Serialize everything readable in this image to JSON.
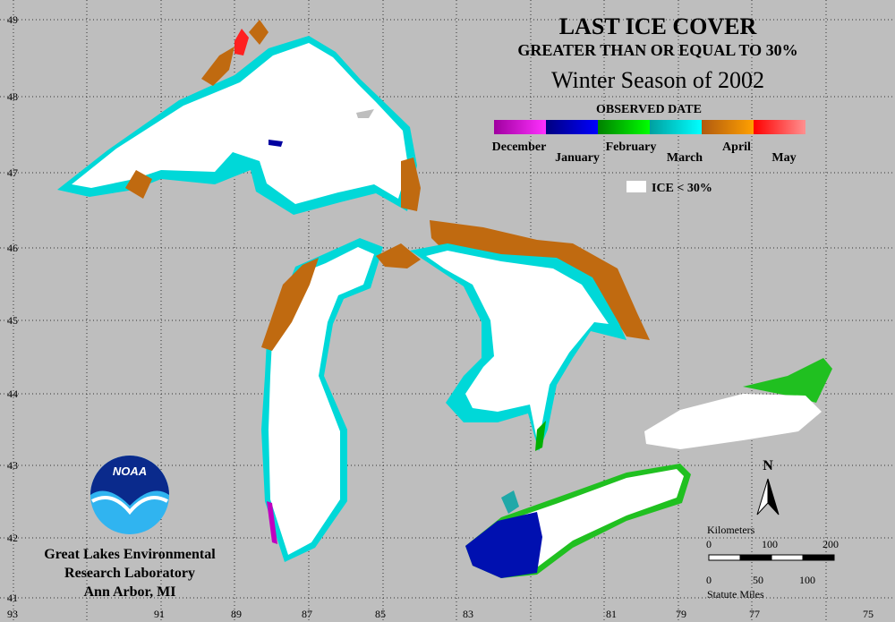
{
  "title": "LAST ICE COVER",
  "subtitle": "GREATER THAN OR EQUAL TO 30%",
  "season": "Winter Season of 2002",
  "legend": {
    "title": "OBSERVED DATE",
    "months": [
      "December",
      "January",
      "February",
      "March",
      "April",
      "May"
    ],
    "ice_label": "ICE < 30%"
  },
  "north": "N",
  "scale": {
    "km_label": "Kilometers",
    "km_ticks": [
      "0",
      "100",
      "200"
    ],
    "mi_label": "Statute Miles",
    "mi_ticks": [
      "0",
      "50",
      "100"
    ]
  },
  "longitude_labels": [
    "93",
    "91",
    "89",
    "87",
    "85",
    "83",
    "81",
    "79",
    "77",
    "75"
  ],
  "latitude_labels": [
    "49",
    "48",
    "47",
    "46",
    "45",
    "44",
    "43",
    "42",
    "41"
  ],
  "logo_text": "NOAA",
  "credit": [
    "Great Lakes Environmental",
    "Research Laboratory",
    "Ann Arbor, MI"
  ]
}
